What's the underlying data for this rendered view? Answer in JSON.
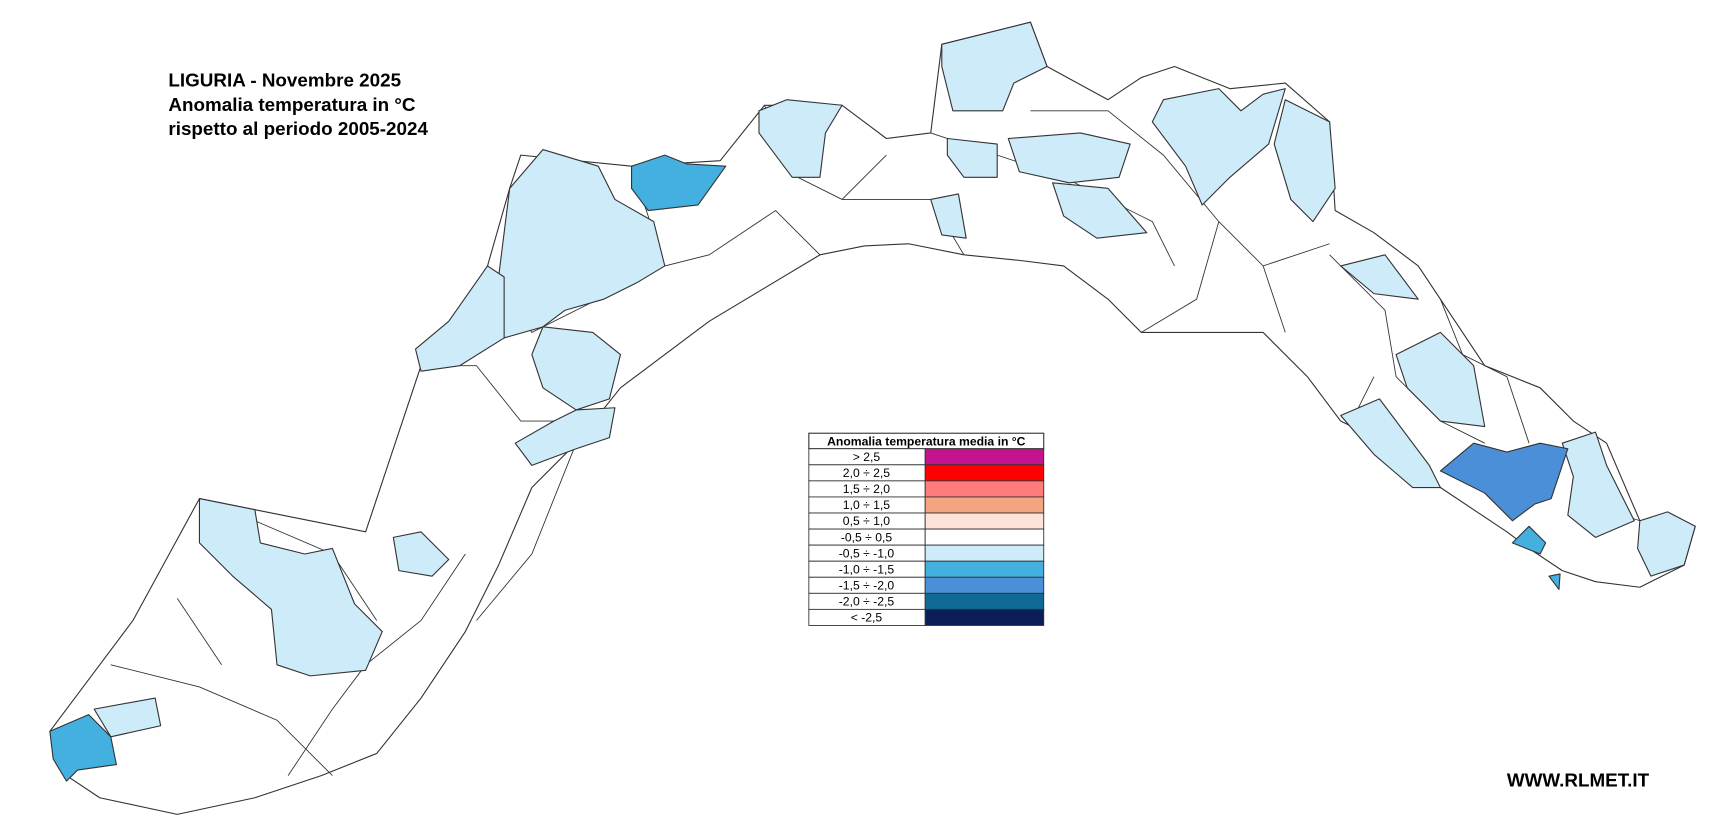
{
  "title": {
    "lines": [
      "LIGURIA - Novembre 2025",
      "Anomalia temperatura in °C",
      "rispetto al periodo 2005-2024"
    ]
  },
  "legend": {
    "title": "Anomalia temperatura media in °C",
    "rows": [
      {
        "label": "> 2,5",
        "color": "#c4138f"
      },
      {
        "label": "2,0 ÷ 2,5",
        "color": "#ff0000"
      },
      {
        "label": "1,5 ÷ 2,0",
        "color": "#ff7c7c"
      },
      {
        "label": "1,0 ÷ 1,5",
        "color": "#f2a57f"
      },
      {
        "label": "0,5 ÷ 1,0",
        "color": "#fde3d8"
      },
      {
        "label": "-0,5 ÷ 0,5",
        "color": "#ffffff"
      },
      {
        "label": "-0,5 ÷ -1,0",
        "color": "#cdebf9"
      },
      {
        "label": "-1,0 ÷ -1,5",
        "color": "#43b0df"
      },
      {
        "label": "-1,5 ÷ -2,0",
        "color": "#4b8fd9"
      },
      {
        "label": "-2,0 ÷ -2,5",
        "color": "#0f6b96"
      },
      {
        "label": "< -2,5",
        "color": "#0b1d57"
      }
    ]
  },
  "footer": {
    "site": "WWW.RLMET.IT"
  }
}
